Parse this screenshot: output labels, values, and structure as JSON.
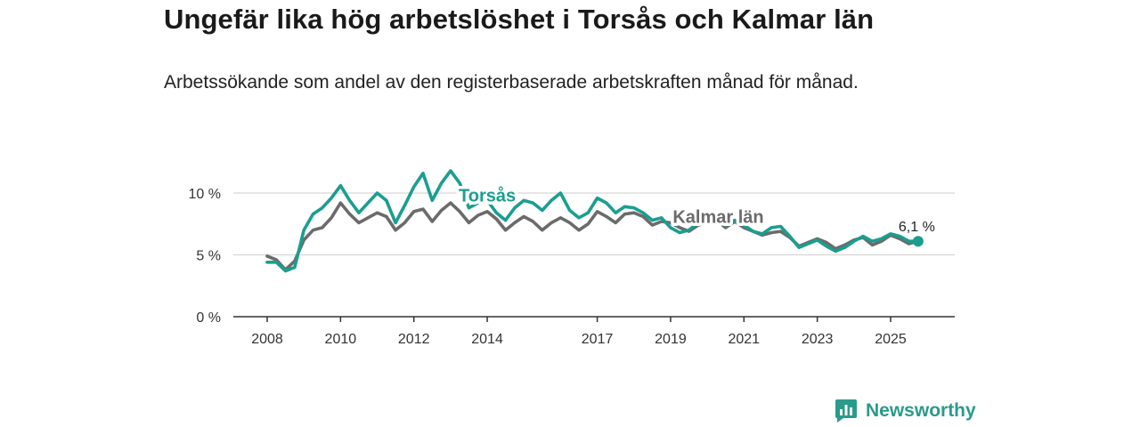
{
  "header": {
    "title": "Ungefär lika hög arbetslöshet i Torsås och Kalmar län",
    "subtitle": "Arbetssökande som andel av den registerbaserade arbetskraften månad för månad."
  },
  "brand": {
    "name": "Newsworthy",
    "icon": "newsworthy-logo-icon"
  },
  "chart_data": {
    "type": "line",
    "title": "Ungefär lika hög arbetslöshet i Torsås och Kalmar län",
    "subtitle": "Arbetssökande som andel av den registerbaserade arbetskraften månad för månad.",
    "xlabel": "",
    "ylabel": "",
    "ylim": [
      0,
      12
    ],
    "xlim": [
      2008.0,
      2025.85
    ],
    "y_ticks": [
      {
        "value": 0,
        "label": "0 %"
      },
      {
        "value": 5,
        "label": "5 %"
      },
      {
        "value": 10,
        "label": "10 %"
      }
    ],
    "x_ticks": [
      {
        "value": 2008,
        "label": "2008"
      },
      {
        "value": 2010,
        "label": "2010"
      },
      {
        "value": 2012,
        "label": "2012"
      },
      {
        "value": 2014,
        "label": "2014"
      },
      {
        "value": 2017,
        "label": "2017"
      },
      {
        "value": 2019,
        "label": "2019"
      },
      {
        "value": 2021,
        "label": "2021"
      },
      {
        "value": 2023,
        "label": "2023"
      },
      {
        "value": 2025,
        "label": "2025"
      }
    ],
    "grid": true,
    "series": [
      {
        "name": "Kalmar län",
        "color": "#6b6b6b",
        "x": [
          2008.0,
          2008.25,
          2008.5,
          2008.75,
          2009.0,
          2009.25,
          2009.5,
          2009.75,
          2010.0,
          2010.25,
          2010.5,
          2010.75,
          2011.0,
          2011.25,
          2011.5,
          2011.75,
          2012.0,
          2012.25,
          2012.5,
          2012.75,
          2013.0,
          2013.25,
          2013.5,
          2013.75,
          2014.0,
          2014.25,
          2014.5,
          2014.75,
          2015.0,
          2015.25,
          2015.5,
          2015.75,
          2016.0,
          2016.25,
          2016.5,
          2016.75,
          2017.0,
          2017.25,
          2017.5,
          2017.75,
          2018.0,
          2018.25,
          2018.5,
          2018.75,
          2019.0,
          2019.25,
          2019.5,
          2019.75,
          2020.0,
          2020.25,
          2020.5,
          2020.75,
          2021.0,
          2021.25,
          2021.5,
          2021.75,
          2022.0,
          2022.25,
          2022.5,
          2022.75,
          2023.0,
          2023.25,
          2023.5,
          2023.75,
          2024.0,
          2024.25,
          2024.5,
          2024.75,
          2025.0,
          2025.25,
          2025.5,
          2025.75
        ],
        "values": [
          4.9,
          4.6,
          3.8,
          4.5,
          6.2,
          7.0,
          7.2,
          8.0,
          9.2,
          8.3,
          7.6,
          8.0,
          8.4,
          8.1,
          7.0,
          7.6,
          8.5,
          8.7,
          7.7,
          8.6,
          9.2,
          8.5,
          7.6,
          8.2,
          8.5,
          7.9,
          7.0,
          7.6,
          8.1,
          7.7,
          7.0,
          7.6,
          8.0,
          7.6,
          7.0,
          7.5,
          8.5,
          8.1,
          7.6,
          8.3,
          8.4,
          8.1,
          7.4,
          7.7,
          7.6,
          7.2,
          6.9,
          7.4,
          7.6,
          7.8,
          7.2,
          7.7,
          7.2,
          6.9,
          6.6,
          6.8,
          6.9,
          6.4,
          5.7,
          6.0,
          6.3,
          6.0,
          5.5,
          5.8,
          6.2,
          6.4,
          5.8,
          6.1,
          6.6,
          6.3,
          5.9,
          6.1
        ]
      },
      {
        "name": "Torsås",
        "color": "#1a9e8f",
        "x": [
          2008.0,
          2008.25,
          2008.5,
          2008.75,
          2009.0,
          2009.25,
          2009.5,
          2009.75,
          2010.0,
          2010.25,
          2010.5,
          2010.75,
          2011.0,
          2011.25,
          2011.5,
          2011.75,
          2012.0,
          2012.25,
          2012.5,
          2012.75,
          2013.0,
          2013.25,
          2013.5,
          2013.75,
          2014.0,
          2014.25,
          2014.5,
          2014.75,
          2015.0,
          2015.25,
          2015.5,
          2015.75,
          2016.0,
          2016.25,
          2016.5,
          2016.75,
          2017.0,
          2017.25,
          2017.5,
          2017.75,
          2018.0,
          2018.25,
          2018.5,
          2018.75,
          2019.0,
          2019.25,
          2019.5,
          2019.75,
          2020.0,
          2020.25,
          2020.5,
          2020.75,
          2021.0,
          2021.25,
          2021.5,
          2021.75,
          2022.0,
          2022.25,
          2022.5,
          2022.75,
          2023.0,
          2023.25,
          2023.5,
          2023.75,
          2024.0,
          2024.25,
          2024.5,
          2024.75,
          2025.0,
          2025.25,
          2025.5,
          2025.75
        ],
        "values": [
          4.4,
          4.4,
          3.7,
          4.0,
          7.0,
          8.3,
          8.8,
          9.6,
          10.6,
          9.4,
          8.4,
          9.2,
          10.0,
          9.4,
          7.6,
          9.0,
          10.5,
          11.6,
          9.4,
          10.8,
          11.8,
          10.8,
          8.8,
          9.2,
          9.4,
          8.4,
          7.8,
          8.8,
          9.4,
          9.2,
          8.6,
          9.4,
          10.0,
          8.6,
          8.0,
          8.4,
          9.6,
          9.2,
          8.4,
          8.9,
          8.8,
          8.4,
          7.8,
          8.0,
          7.2,
          6.8,
          7.0,
          7.6,
          7.8,
          8.0,
          7.4,
          7.8,
          7.4,
          6.9,
          6.7,
          7.2,
          7.3,
          6.5,
          5.6,
          5.9,
          6.2,
          5.7,
          5.3,
          5.6,
          6.1,
          6.5,
          6.1,
          6.3,
          6.7,
          6.5,
          6.1,
          6.1
        ]
      }
    ],
    "series_labels": [
      {
        "name": "Torsås",
        "x": 2014.0,
        "y": 9.3
      },
      {
        "name": "Kalmar län",
        "x": 2020.3,
        "y": 7.6
      }
    ],
    "end_label": {
      "series": "Torsås",
      "text": "6,1 %",
      "x": 2025.75,
      "y": 6.1
    }
  }
}
